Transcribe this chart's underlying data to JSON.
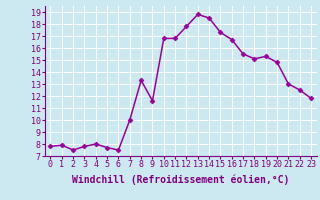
{
  "x": [
    0,
    1,
    2,
    3,
    4,
    5,
    6,
    7,
    8,
    9,
    10,
    11,
    12,
    13,
    14,
    15,
    16,
    17,
    18,
    19,
    20,
    21,
    22,
    23
  ],
  "y": [
    7.8,
    7.9,
    7.5,
    7.8,
    8.0,
    7.7,
    7.5,
    10.0,
    13.3,
    11.6,
    16.8,
    16.8,
    17.8,
    18.8,
    18.5,
    17.3,
    16.7,
    15.5,
    15.1,
    15.3,
    14.8,
    13.0,
    12.5,
    11.8
  ],
  "line_color": "#990099",
  "marker": "D",
  "marker_size": 2.5,
  "bg_color": "#cce8f0",
  "grid_color": "#ffffff",
  "xlabel": "Windchill (Refroidissement éolien,°C)",
  "xlabel_color": "#800080",
  "tick_color": "#800080",
  "xlim": [
    -0.5,
    23.5
  ],
  "ylim": [
    7,
    19.5
  ],
  "xtick_labels": [
    "0",
    "1",
    "2",
    "3",
    "4",
    "5",
    "6",
    "7",
    "8",
    "9",
    "10",
    "11",
    "12",
    "13",
    "14",
    "15",
    "16",
    "17",
    "18",
    "19",
    "20",
    "21",
    "22",
    "23"
  ],
  "ytick_vals": [
    7,
    8,
    9,
    10,
    11,
    12,
    13,
    14,
    15,
    16,
    17,
    18,
    19
  ],
  "tick_fontsize": 6.0,
  "xlabel_fontsize": 7.0,
  "line_width": 1.1
}
